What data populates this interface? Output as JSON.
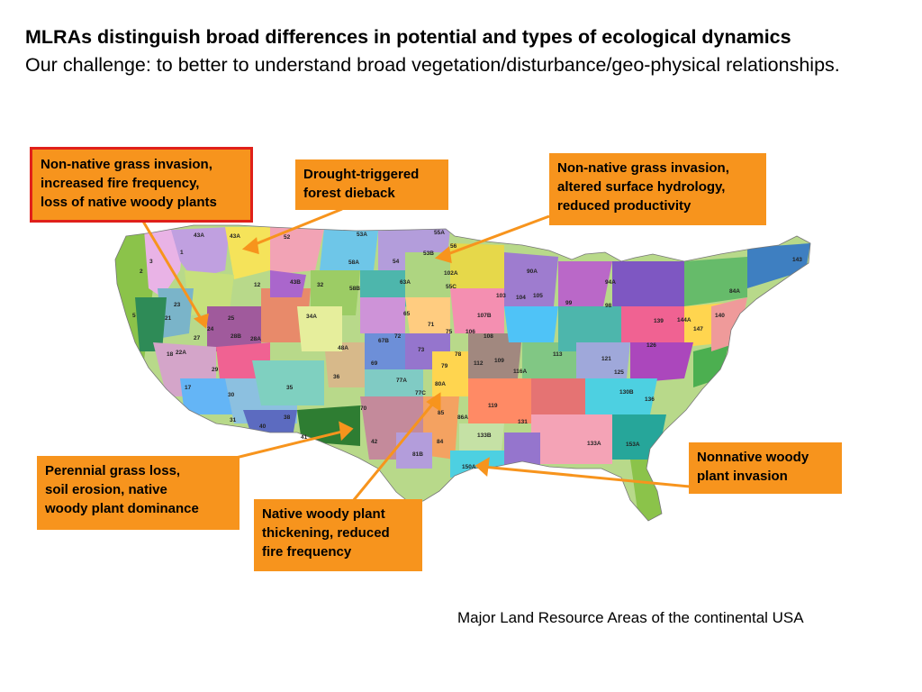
{
  "heading": {
    "title": "MLRAs distinguish broad differences in potential and types of ecological dynamics",
    "subtitle": "Our challenge:  to better to understand broad vegetation/disturbance/geo-physical relationships."
  },
  "callouts": {
    "nw": "Non-native grass invasion,\nincreased fire frequency,\nloss of native woody plants",
    "drought": "Drought-triggered\nforest dieback",
    "ne": "Non-native grass invasion,\naltered surface hydrology,\nreduced productivity",
    "perennial": "Perennial grass loss,\nsoil erosion, native\nwoody plant dominance",
    "native": "Native woody plant\nthickening, reduced\nfire frequency",
    "nonnative": "Nonnative woody\nplant invasion"
  },
  "colors": {
    "callout_fill": "#f7941d",
    "callout_border_red": "#e0201a",
    "arrow": "#f7941d"
  },
  "map": {
    "region_labels": [
      "43A",
      "43A",
      "52",
      "53A",
      "55A",
      "1",
      "2",
      "3",
      "5",
      "12",
      "21",
      "23",
      "25",
      "24",
      "27",
      "28B",
      "28A",
      "29",
      "30",
      "31",
      "40",
      "41",
      "35",
      "34A",
      "32",
      "43B",
      "58A",
      "54",
      "58B",
      "63A",
      "53B",
      "56",
      "55C",
      "102A",
      "65",
      "71",
      "72",
      "75",
      "67B",
      "69",
      "77A",
      "73",
      "79",
      "80A",
      "77C",
      "78",
      "70",
      "112",
      "106",
      "109",
      "107B",
      "103",
      "104",
      "105",
      "90A",
      "94A",
      "98",
      "99",
      "113",
      "116A",
      "119",
      "121",
      "125",
      "126",
      "130B",
      "131",
      "133B",
      "133A",
      "136",
      "139",
      "140",
      "143",
      "144A",
      "147",
      "150A",
      "81B",
      "84",
      "84A",
      "86A",
      "153A",
      "17",
      "18",
      "22A",
      "36",
      "48A",
      "42",
      "38",
      "85",
      "108"
    ]
  },
  "caption": "Major Land Resource Areas of the continental USA"
}
